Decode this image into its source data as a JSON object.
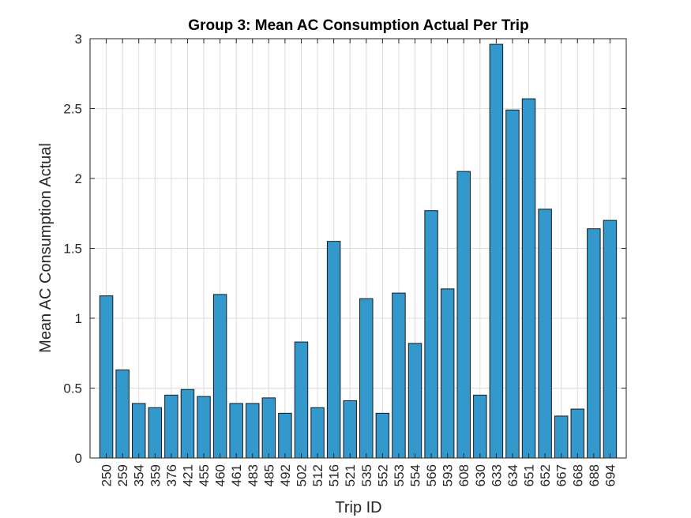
{
  "chart_data": {
    "type": "bar",
    "title": "Group 3: Mean AC Consumption Actual Per Trip",
    "xlabel": "Trip ID",
    "ylabel": "Mean AC Consumption Actual",
    "categories": [
      "250",
      "259",
      "354",
      "359",
      "376",
      "421",
      "455",
      "460",
      "461",
      "483",
      "485",
      "492",
      "502",
      "512",
      "516",
      "521",
      "535",
      "552",
      "553",
      "554",
      "566",
      "593",
      "608",
      "630",
      "633",
      "634",
      "651",
      "652",
      "667",
      "668",
      "688",
      "694"
    ],
    "values": [
      1.16,
      0.63,
      0.39,
      0.36,
      0.45,
      0.49,
      0.44,
      1.17,
      0.39,
      0.39,
      0.43,
      0.32,
      0.83,
      0.36,
      1.55,
      0.41,
      1.14,
      0.32,
      1.18,
      0.82,
      1.77,
      1.21,
      2.05,
      0.45,
      2.96,
      2.49,
      2.57,
      1.78,
      0.3,
      0.35,
      1.64,
      1.7
    ],
    "ylim": [
      0,
      3
    ],
    "yticks": [
      0,
      0.5,
      1,
      1.5,
      2,
      2.5,
      3
    ],
    "yticklabels": [
      "0",
      "0.5",
      "1",
      "1.5",
      "2",
      "2.5",
      "3"
    ],
    "grid": true,
    "colors": {
      "bar_fill": "#3399CC",
      "bar_edge": "#1a1a1a"
    }
  }
}
